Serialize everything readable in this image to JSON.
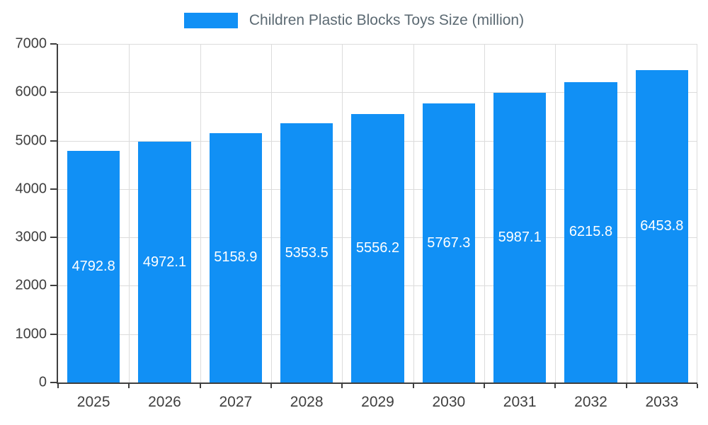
{
  "chart_data": {
    "type": "bar",
    "title": "Children Plastic Blocks Toys Size (million)",
    "categories": [
      "2025",
      "2026",
      "2027",
      "2028",
      "2029",
      "2030",
      "2031",
      "2032",
      "2033"
    ],
    "values": [
      4792.8,
      4972.1,
      5158.9,
      5353.5,
      5556.2,
      5767.3,
      5987.1,
      6215.8,
      6453.8
    ],
    "value_labels": [
      "4792.8",
      "4972.1",
      "5158.9",
      "5353.5",
      "5556.2",
      "5767.3",
      "5987.1",
      "6215.8",
      "6453.8"
    ],
    "xlabel": "",
    "ylabel": "",
    "ylim": [
      0,
      7000
    ],
    "yticks": [
      0,
      1000,
      2000,
      3000,
      4000,
      5000,
      6000,
      7000
    ],
    "grid": true,
    "legend_position": "top",
    "colors": {
      "bar": "#1190f5",
      "bar_label": "#ffffff",
      "axis_text": "#3f3f3f",
      "legend_text": "#5c6a73",
      "gridline": "#dcdcdc",
      "axis_line": "#3f3f3f",
      "background": "#ffffff"
    }
  }
}
